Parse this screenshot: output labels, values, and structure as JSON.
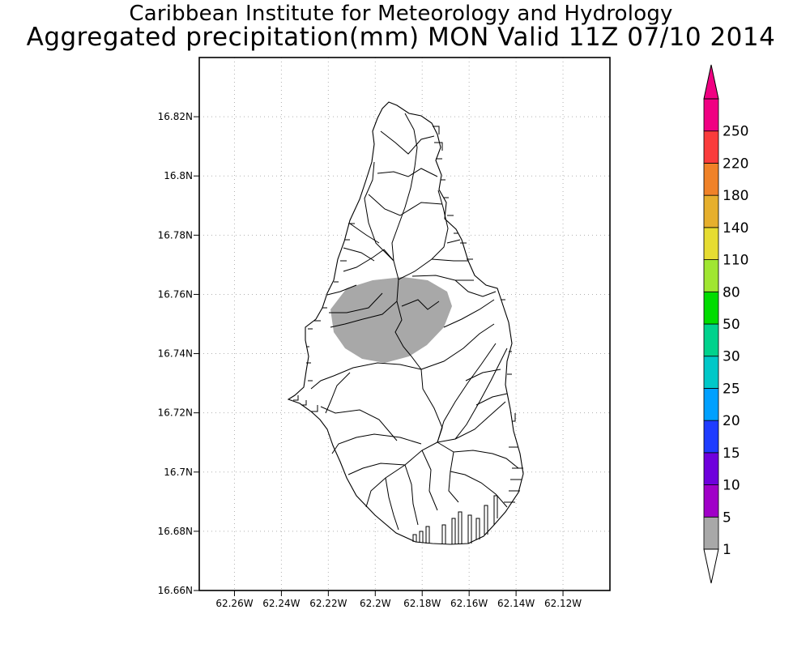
{
  "title": {
    "line1": "Caribbean Institute for Meteorology and Hydrology",
    "line2": "Aggregated precipitation(mm) MON Valid 11Z 07/10 2014"
  },
  "map": {
    "lon_range": [
      -62.275,
      -62.1
    ],
    "lat_range": [
      16.66,
      16.84
    ],
    "lon_ticks": [
      {
        "value": -62.26,
        "label": "62.26W"
      },
      {
        "value": -62.24,
        "label": "62.24W"
      },
      {
        "value": -62.22,
        "label": "62.22W"
      },
      {
        "value": -62.2,
        "label": "62.2W"
      },
      {
        "value": -62.18,
        "label": "62.18W"
      },
      {
        "value": -62.16,
        "label": "62.16W"
      },
      {
        "value": -62.14,
        "label": "62.14W"
      },
      {
        "value": -62.12,
        "label": "62.12W"
      }
    ],
    "lat_ticks": [
      {
        "value": 16.66,
        "label": "16.66N"
      },
      {
        "value": 16.68,
        "label": "16.68N"
      },
      {
        "value": 16.7,
        "label": "16.7N"
      },
      {
        "value": 16.72,
        "label": "16.72N"
      },
      {
        "value": 16.74,
        "label": "16.74N"
      },
      {
        "value": 16.76,
        "label": "16.76N"
      },
      {
        "value": 16.78,
        "label": "16.78N"
      },
      {
        "value": 16.8,
        "label": "16.8N"
      },
      {
        "value": 16.82,
        "label": "16.82N"
      }
    ],
    "grid": true,
    "precip_area": {
      "class_min": 1,
      "class_max": 5,
      "color": "#a8a8a8"
    }
  },
  "colorbar": {
    "levels": [
      "1",
      "5",
      "10",
      "15",
      "20",
      "25",
      "30",
      "50",
      "80",
      "110",
      "140",
      "180",
      "220",
      "250"
    ],
    "colors": [
      "#a8a8a8",
      "#a000c8",
      "#6e00dc",
      "#1e3cff",
      "#00a0ff",
      "#00c8c8",
      "#00d28c",
      "#00dc00",
      "#a0e632",
      "#e6dc32",
      "#e6af2d",
      "#f08228",
      "#fa3c3c",
      "#f00082"
    ],
    "low_arrow_color": "#ffffff",
    "high_arrow_color": "#f00082"
  }
}
